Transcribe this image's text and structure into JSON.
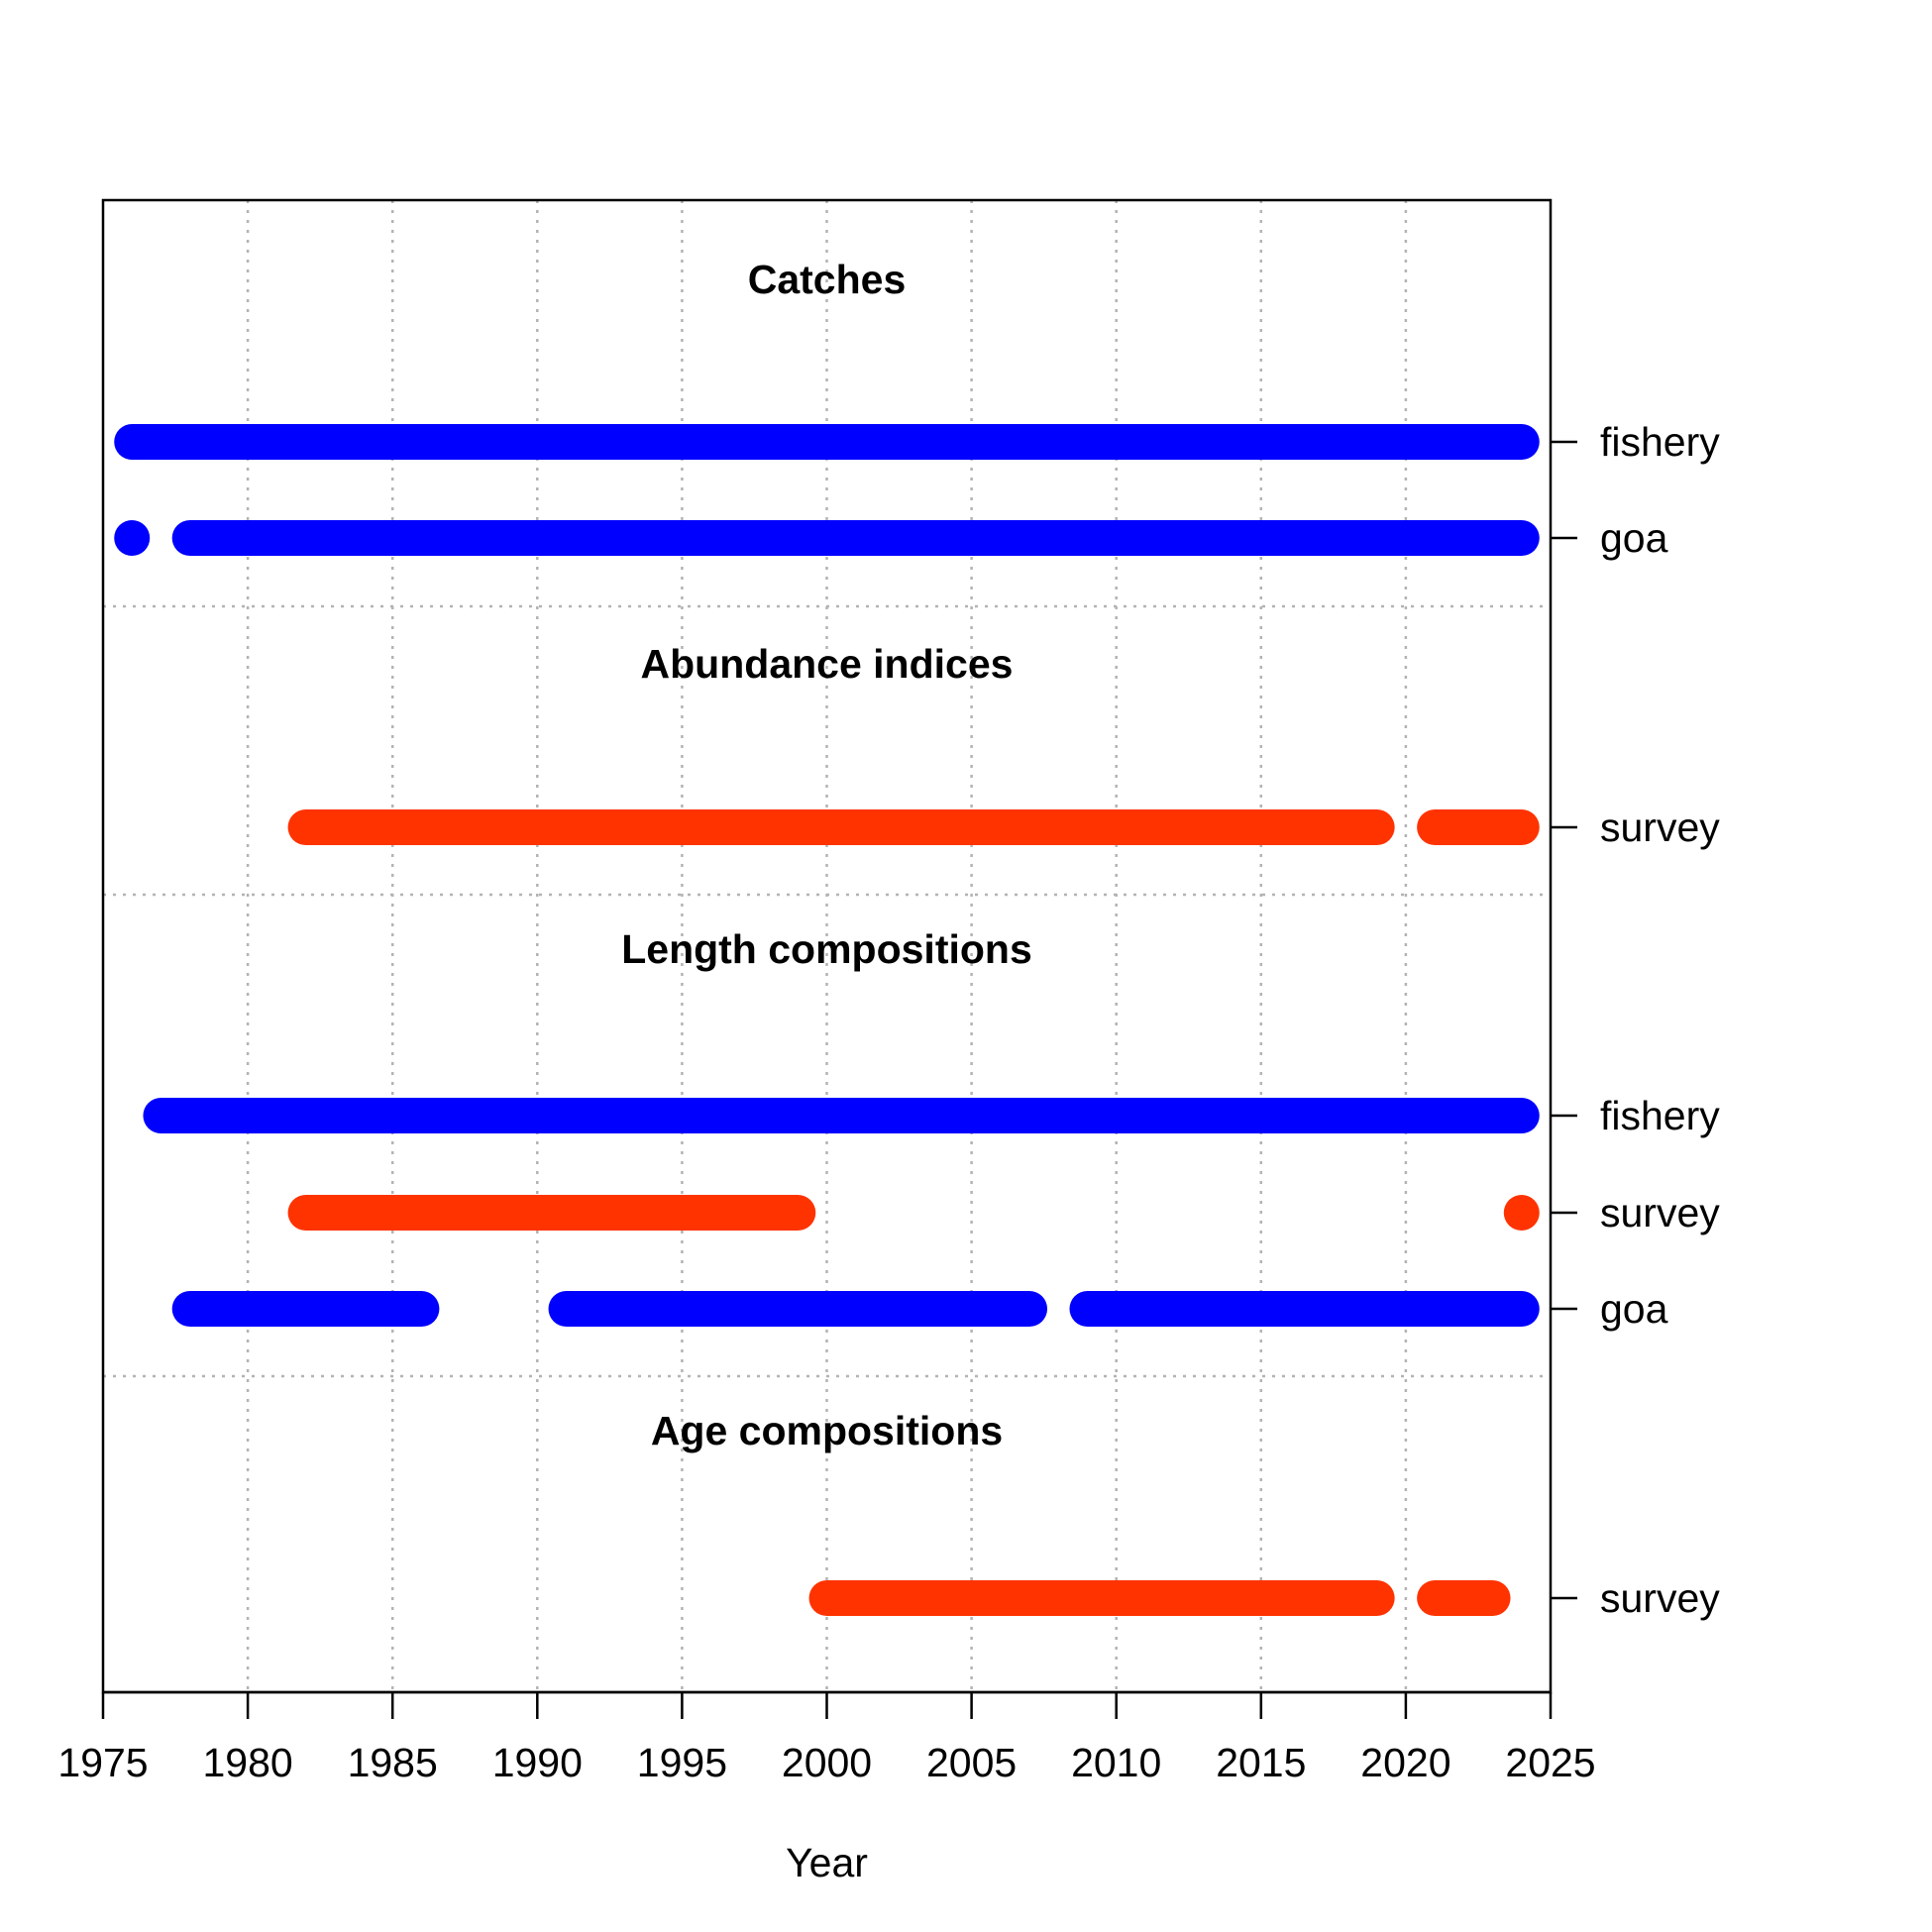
{
  "chart_data": {
    "type": "timeline",
    "xlabel": "Year",
    "xlim": [
      1975,
      2025
    ],
    "xticks": [
      1975,
      1980,
      1985,
      1990,
      1995,
      2000,
      2005,
      2010,
      2015,
      2020,
      2025
    ],
    "grid": true,
    "colors": {
      "fishery": "#0000FF",
      "goa": "#0000FF",
      "survey": "#FF3300"
    },
    "sections": [
      {
        "title": "Catches",
        "rows": [
          {
            "label": "fishery",
            "color": "#0000FF",
            "segments": [
              [
                1976,
                2024
              ]
            ]
          },
          {
            "label": "goa",
            "color": "#0000FF",
            "segments": [
              [
                1976,
                1976
              ],
              [
                1978,
                2024
              ]
            ]
          }
        ]
      },
      {
        "title": "Abundance indices",
        "rows": [
          {
            "label": "survey",
            "color": "#FF3300",
            "segments": [
              [
                1982,
                2019
              ],
              [
                2021,
                2024
              ]
            ]
          }
        ]
      },
      {
        "title": "Length compositions",
        "rows": [
          {
            "label": "fishery",
            "color": "#0000FF",
            "segments": [
              [
                1977,
                2024
              ]
            ]
          },
          {
            "label": "survey",
            "color": "#FF3300",
            "segments": [
              [
                1982,
                1999
              ],
              [
                2024,
                2024
              ]
            ]
          },
          {
            "label": "goa",
            "color": "#0000FF",
            "segments": [
              [
                1978,
                1986
              ],
              [
                1991,
                2007
              ],
              [
                2009,
                2024
              ]
            ]
          }
        ]
      },
      {
        "title": "Age compositions",
        "rows": [
          {
            "label": "survey",
            "color": "#FF3300",
            "segments": [
              [
                2000,
                2019
              ],
              [
                2021,
                2023
              ]
            ]
          }
        ]
      }
    ]
  }
}
